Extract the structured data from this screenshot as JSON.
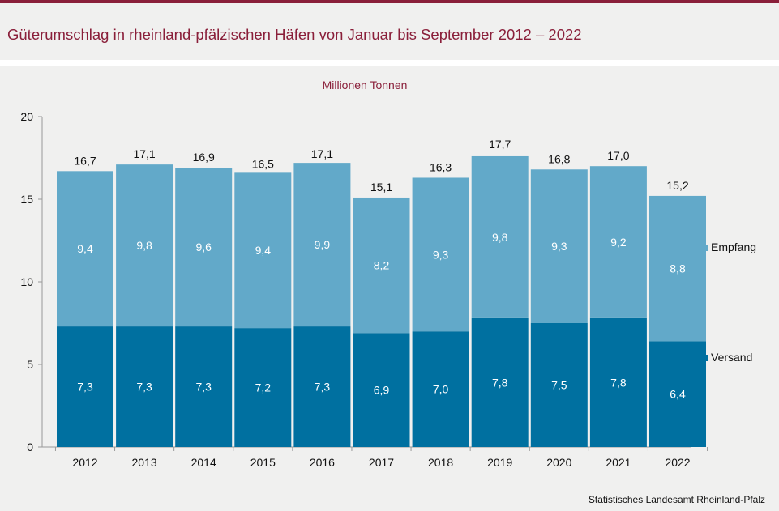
{
  "header": {
    "title": "Güterumschlag in rheinland-pfälzischen Häfen von Januar bis September 2012 – 2022"
  },
  "footer": {
    "source": "Statistisches Landesamt  Rheinland-Pfalz"
  },
  "colors": {
    "title": "#8a1f3a",
    "versand": "#0070a0",
    "empfang": "#62a9c9"
  },
  "chart_data": {
    "type": "bar",
    "stacked": true,
    "title": "",
    "ylabel": "Millionen  Tonnen",
    "xlabel": "",
    "ylim": [
      0,
      20
    ],
    "yticks": [
      0,
      5,
      10,
      15,
      20
    ],
    "grid": false,
    "legend_position": "right",
    "categories": [
      "2012",
      "2013",
      "2014",
      "2015",
      "2016",
      "2017",
      "2018",
      "2019",
      "2020",
      "2021",
      "2022"
    ],
    "series": [
      {
        "name": "Versand",
        "values": [
          7.3,
          7.3,
          7.3,
          7.2,
          7.3,
          6.9,
          7.0,
          7.8,
          7.5,
          7.8,
          6.4
        ],
        "labels": [
          "7,3",
          "7,3",
          "7,3",
          "7,2",
          "7,3",
          "6,9",
          "7,0",
          "7,8",
          "7,5",
          "7,8",
          "6,4"
        ]
      },
      {
        "name": "Empfang",
        "values": [
          9.4,
          9.8,
          9.6,
          9.4,
          9.9,
          8.2,
          9.3,
          9.8,
          9.3,
          9.2,
          8.8
        ],
        "labels": [
          "9,4",
          "9,8",
          "9,6",
          "9,4",
          "9,9",
          "8,2",
          "9,3",
          "9,8",
          "9,3",
          "9,2",
          "8,8"
        ]
      }
    ],
    "totals": [
      16.7,
      17.1,
      16.9,
      16.5,
      17.1,
      15.1,
      16.3,
      17.7,
      16.8,
      17.0,
      15.2
    ],
    "total_labels": [
      "16,7",
      "17,1",
      "16,9",
      "16,5",
      "17,1",
      "15,1",
      "16,3",
      "17,7",
      "16,8",
      "17,0",
      "15,2"
    ]
  }
}
